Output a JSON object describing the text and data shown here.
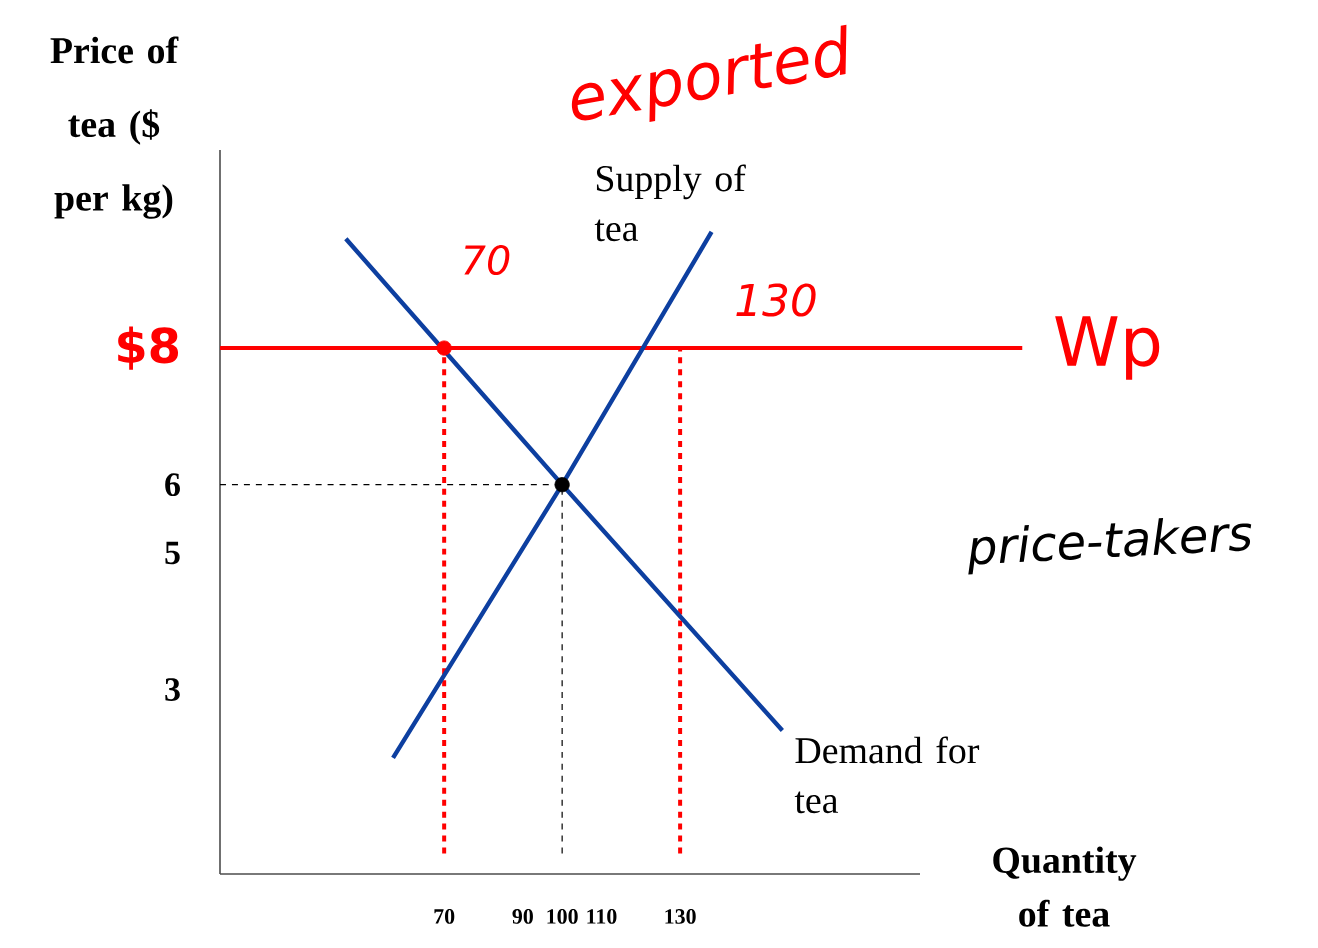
{
  "chart_data": {
    "type": "line",
    "ylabel": "Price of tea ($ per kg)",
    "xlabel": "Quantity of tea",
    "xlim": [
      13,
      191
    ],
    "ylim": [
      0.3,
      10.9
    ],
    "xticks": [
      70,
      90,
      100,
      110,
      130
    ],
    "yticks": [
      3,
      5,
      6,
      {
        "value": 8,
        "label": "$8"
      }
    ],
    "series": [
      {
        "name": "Supply of tea",
        "color": "#0d3fa0",
        "x": [
          57,
          100,
          138
        ],
        "values": [
          2.0,
          6,
          9.7
        ]
      },
      {
        "name": "Demand for tea",
        "color": "#0d3fa0",
        "x": [
          45,
          100,
          156
        ],
        "values": [
          9.6,
          6,
          2.4
        ]
      },
      {
        "type": "scatter",
        "color": "#000000",
        "x": [
          100
        ],
        "values": [
          6
        ]
      },
      {
        "type": "scatter",
        "color": "#ff0000",
        "x": [
          70
        ],
        "values": [
          8
        ]
      }
    ],
    "ref_lines": [
      {
        "axis": "y",
        "value": 6,
        "color": "#000000",
        "line_style": "dashed"
      },
      {
        "axis": "x",
        "value": 100,
        "color": "#000000",
        "line_style": "dashed"
      },
      {
        "axis": "y",
        "value": 8,
        "label": "Wp",
        "color": "#ff0000",
        "line_style": "solid"
      },
      {
        "axis": "x",
        "value": 70,
        "color": "#ff0000",
        "line_style": "dashed"
      },
      {
        "axis": "x",
        "value": 130,
        "color": "#ff0000",
        "line_style": "dashed"
      }
    ],
    "annotations": [
      "exported",
      "70",
      "130",
      "price-takers"
    ]
  }
}
